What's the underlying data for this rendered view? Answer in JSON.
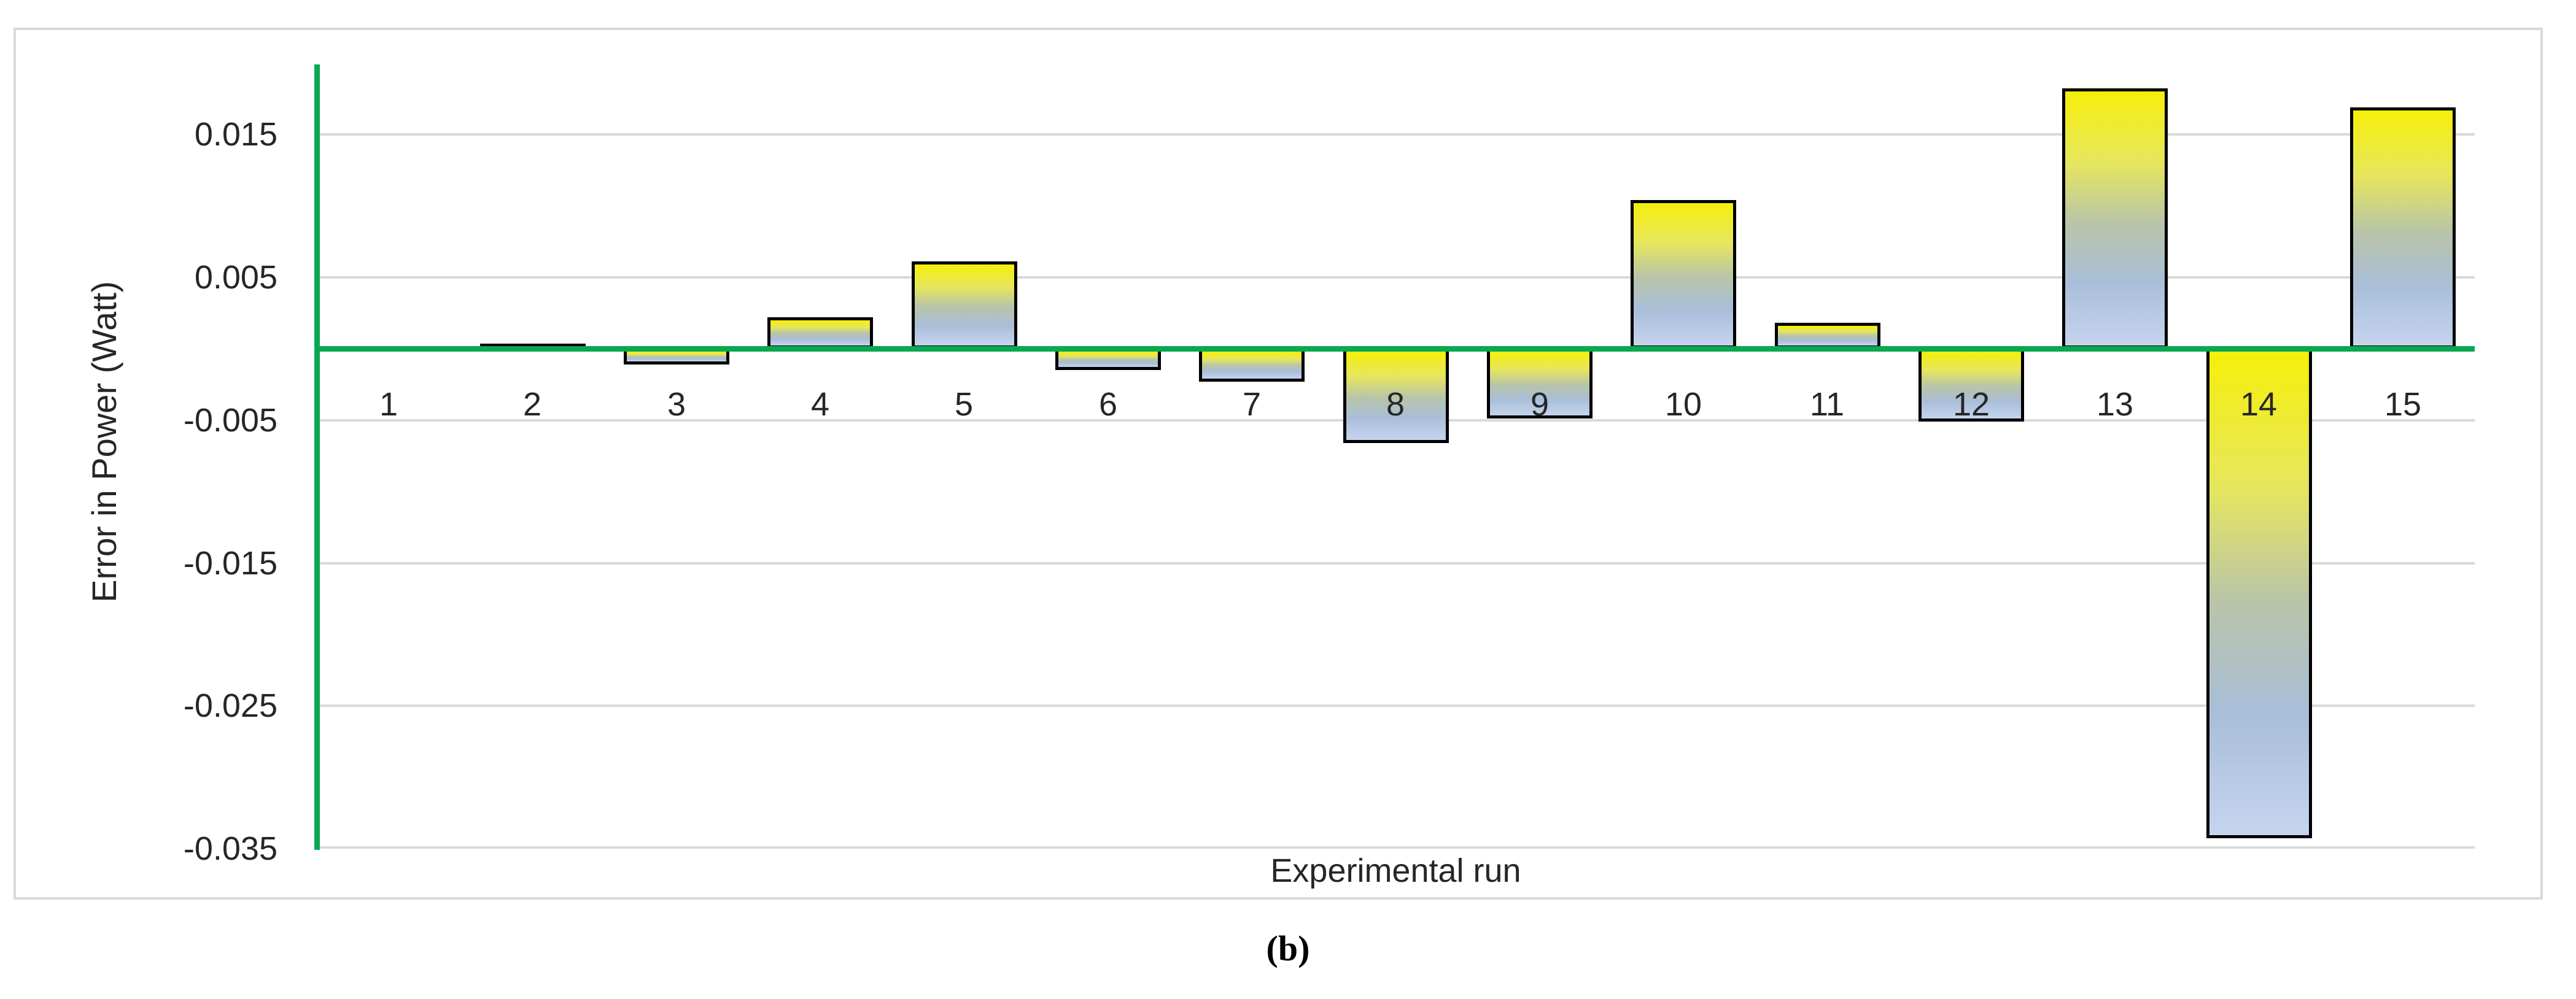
{
  "figure": {
    "caption": "(b)"
  },
  "chart_data": {
    "type": "bar",
    "title": "",
    "xlabel": "Experimental run",
    "ylabel": "Error in Power (Watt)",
    "categories": [
      "1",
      "2",
      "3",
      "4",
      "5",
      "6",
      "7",
      "8",
      "9",
      "10",
      "11",
      "12",
      "13",
      "14",
      "15"
    ],
    "values": [
      0.0,
      0.0003,
      -0.0011,
      0.0022,
      0.0061,
      -0.0015,
      -0.0023,
      -0.0066,
      -0.0049,
      0.0104,
      0.0018,
      -0.0051,
      0.0182,
      -0.0343,
      0.0169
    ],
    "ylim": [
      -0.035,
      0.02
    ],
    "yticks": [
      0.015,
      0.005,
      -0.005,
      -0.015,
      -0.025,
      -0.035
    ],
    "ytick_labels": [
      "0.015",
      "0.005",
      "-0.005",
      "-0.015",
      "-0.025",
      "-0.035"
    ],
    "grid": true,
    "legend": "none",
    "colors": {
      "bar_gradient_stops": [
        "#f5ef0a",
        "#e6e65e",
        "#b9c4a9",
        "#a9bed9",
        "#c6d4ee"
      ],
      "bar_gradient_positions": [
        0,
        28,
        52,
        75,
        100
      ],
      "bar_border": "#000000",
      "axis_line": "#0aa850",
      "gridline": "#d9d9d9",
      "frame_border": "#d9d9d9",
      "text": "#262626",
      "caption_text": "#000000"
    }
  }
}
